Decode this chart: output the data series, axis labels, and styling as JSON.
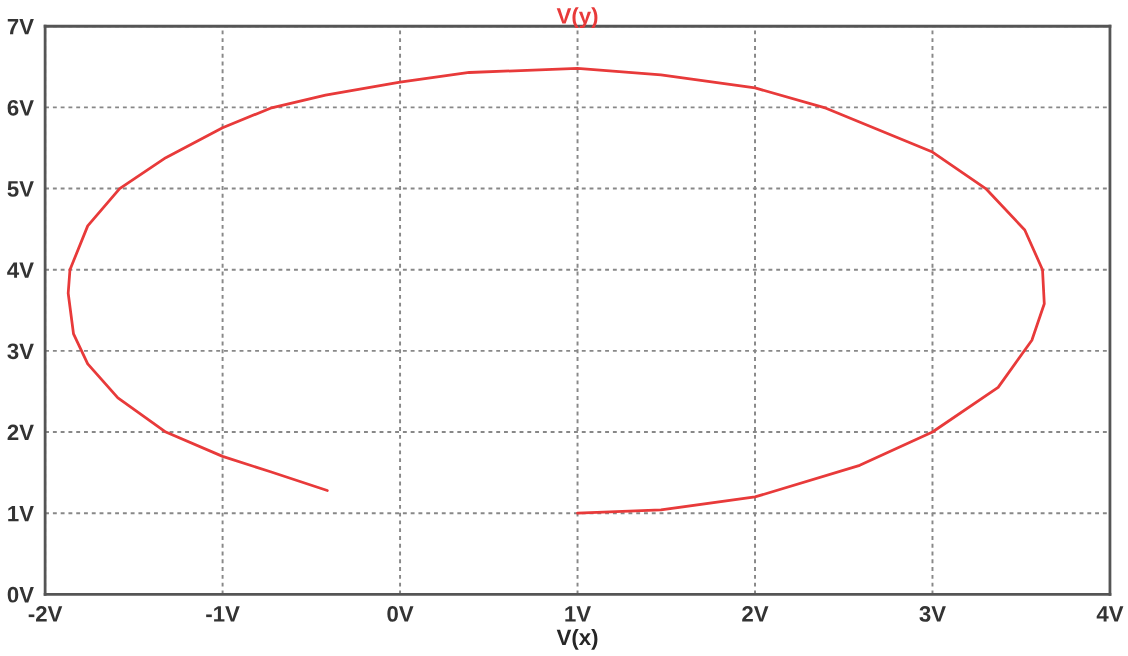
{
  "chart_data": {
    "type": "line",
    "title": "V(y)",
    "xlabel": "V(x)",
    "series": [
      {
        "color": "#e83a3a",
        "x": [
          1.0,
          1.47,
          2.0,
          2.59,
          3.0,
          3.37,
          3.56,
          3.63,
          3.62,
          3.52,
          3.3,
          3.0,
          2.4,
          2.0,
          1.47,
          1.0,
          0.39,
          0.0,
          -0.42,
          -0.73,
          -1.0,
          -1.32,
          -1.58,
          -1.76,
          -1.86,
          -1.87,
          -1.84,
          -1.76,
          -1.59,
          -1.32,
          -1.0,
          -0.73,
          -0.41
        ],
        "values": [
          1.0,
          1.04,
          1.2,
          1.59,
          2.0,
          2.55,
          3.13,
          3.58,
          4.0,
          4.49,
          5.0,
          5.45,
          5.99,
          6.24,
          6.4,
          6.48,
          6.43,
          6.31,
          6.15,
          5.99,
          5.75,
          5.38,
          5.0,
          4.54,
          4.0,
          3.71,
          3.21,
          2.84,
          2.42,
          2.0,
          1.7,
          1.51,
          1.28
        ]
      }
    ],
    "xlim": [
      -2,
      4
    ],
    "ylim": [
      0,
      7
    ],
    "xticks": [
      {
        "value": -2,
        "label": "-2V"
      },
      {
        "value": -1,
        "label": "-1V"
      },
      {
        "value": 0,
        "label": "0V"
      },
      {
        "value": 1,
        "label": "1V"
      },
      {
        "value": 2,
        "label": "2V"
      },
      {
        "value": 3,
        "label": "3V"
      },
      {
        "value": 4,
        "label": "4V"
      }
    ],
    "yticks": [
      {
        "value": 0,
        "label": "0V"
      },
      {
        "value": 1,
        "label": "1V"
      },
      {
        "value": 2,
        "label": "2V"
      },
      {
        "value": 3,
        "label": "3V"
      },
      {
        "value": 4,
        "label": "4V"
      },
      {
        "value": 5,
        "label": "5V"
      },
      {
        "value": 6,
        "label": "6V"
      },
      {
        "value": 7,
        "label": "7V"
      }
    ],
    "grid": true,
    "line_style": "solid"
  }
}
